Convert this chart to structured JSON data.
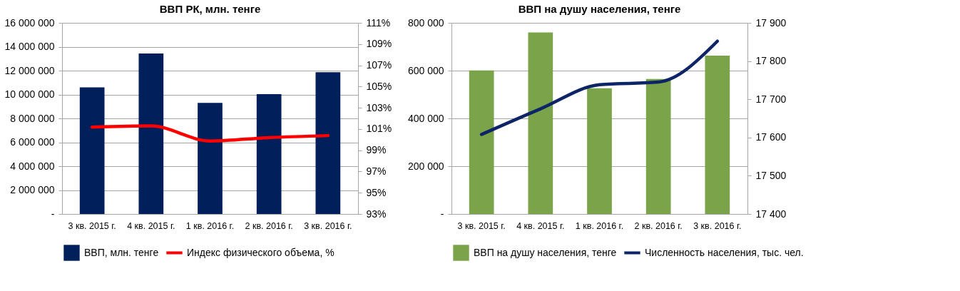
{
  "chart_data": [
    {
      "type": "bar",
      "title": "ВВП РК, млн. тенге",
      "categories": [
        "3 кв. 2015 г.",
        "4 кв. 2015 г.",
        "1 кв. 2016 г.",
        "2 кв. 2016 г.",
        "3 кв. 2016 г."
      ],
      "series": [
        {
          "name": "ВВП, млн. тенге",
          "color": "#001f5b",
          "values": [
            10600000,
            13430000,
            9300000,
            10030000,
            11860000
          ]
        },
        {
          "name": "Индекс физического объема, %",
          "type": "line",
          "axis": "y2",
          "color": "#ff0000",
          "values": [
            101.18,
            101.29,
            99.87,
            100.19,
            100.38
          ]
        }
      ],
      "ylim": [
        0,
        16000000
      ],
      "yticks": [
        {
          "value": 0,
          "label": "-"
        },
        {
          "value": 2000000,
          "label": "2 000 000"
        },
        {
          "value": 4000000,
          "label": "4 000 000"
        },
        {
          "value": 6000000,
          "label": "6 000 000"
        },
        {
          "value": 8000000,
          "label": "8 000 000"
        },
        {
          "value": 10000000,
          "label": "10 000 000"
        },
        {
          "value": 12000000,
          "label": "12 000 000"
        },
        {
          "value": 14000000,
          "label": "14 000 000"
        },
        {
          "value": 16000000,
          "label": "16 000 000"
        }
      ],
      "y2lim": [
        93,
        111
      ],
      "y2ticks": [
        {
          "value": 93,
          "label": "93%"
        },
        {
          "value": 95,
          "label": "95%"
        },
        {
          "value": 97,
          "label": "97%"
        },
        {
          "value": 99,
          "label": "99%"
        },
        {
          "value": 101,
          "label": "101%"
        },
        {
          "value": 103,
          "label": "103%"
        },
        {
          "value": 105,
          "label": "105%"
        },
        {
          "value": 107,
          "label": "107%"
        },
        {
          "value": 109,
          "label": "109%"
        },
        {
          "value": 111,
          "label": "111%"
        }
      ],
      "grid": "y",
      "legend": "bottom",
      "line_style": "solid",
      "marker": "none"
    },
    {
      "type": "bar",
      "title": "ВВП на душу населения, тенге",
      "categories": [
        "3 кв. 2015 г.",
        "4 кв. 2015 г.",
        "1 кв. 2016 г.",
        "2 кв. 2016 г.",
        "3 кв. 2016 г."
      ],
      "series": [
        {
          "name": "ВВП на душу населения, тенге",
          "color": "#7aa34a",
          "values": [
            601000,
            760000,
            526000,
            565000,
            663000
          ]
        },
        {
          "name": "Численность населения, тыс. чел.",
          "type": "line",
          "axis": "y2",
          "color": "#0d2466",
          "values": [
            17608,
            17675,
            17738,
            17745,
            17852
          ]
        }
      ],
      "ylim": [
        0,
        800000
      ],
      "yticks": [
        {
          "value": 0,
          "label": "-"
        },
        {
          "value": 200000,
          "label": "200 000"
        },
        {
          "value": 400000,
          "label": "400 000"
        },
        {
          "value": 600000,
          "label": "600 000"
        },
        {
          "value": 800000,
          "label": "800 000"
        }
      ],
      "y2lim": [
        17400,
        17900
      ],
      "y2ticks": [
        {
          "value": 17400,
          "label": "17 400"
        },
        {
          "value": 17500,
          "label": "17 500"
        },
        {
          "value": 17600,
          "label": "17 600"
        },
        {
          "value": 17700,
          "label": "17 700"
        },
        {
          "value": 17800,
          "label": "17 800"
        },
        {
          "value": 17900,
          "label": "17 900"
        }
      ],
      "grid": "y",
      "legend": "bottom",
      "line_style": "solid",
      "marker": "none"
    }
  ]
}
